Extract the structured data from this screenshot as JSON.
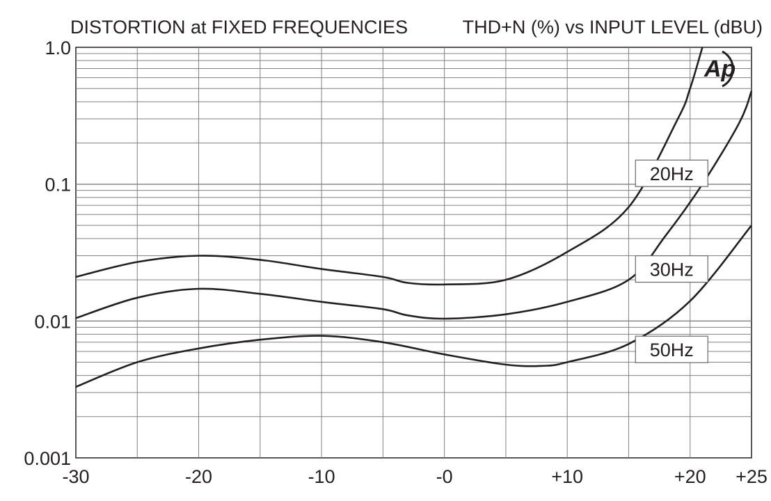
{
  "header": {
    "title": "DISTORTION at FIXED FREQUENCIES",
    "subtitle": "THD+N (%) vs INPUT LEVEL (dBU)"
  },
  "logo": {
    "text": "Ap"
  },
  "chart_data": {
    "type": "line",
    "title": "DISTORTION at FIXED FREQUENCIES",
    "subtitle": "THD+N (%) vs INPUT LEVEL (dBU)",
    "xlabel": "",
    "ylabel": "",
    "xlim": [
      -30,
      25
    ],
    "ylim": [
      0.001,
      1.0
    ],
    "yscale": "log",
    "grid": true,
    "x_ticks": [
      {
        "value": -30,
        "label": "-30"
      },
      {
        "value": -20,
        "label": "-20"
      },
      {
        "value": -10,
        "label": "-10"
      },
      {
        "value": 0,
        "label": "-0"
      },
      {
        "value": 10,
        "label": "+10"
      },
      {
        "value": 20,
        "label": "+20"
      },
      {
        "value": 25,
        "label": "+25"
      }
    ],
    "y_ticks": [
      {
        "value": 1.0,
        "label": "1.0"
      },
      {
        "value": 0.1,
        "label": "0.1"
      },
      {
        "value": 0.01,
        "label": "0.01"
      },
      {
        "value": 0.001,
        "label": "0.001"
      }
    ],
    "series": [
      {
        "name": "20Hz",
        "x": [
          -30,
          -25,
          -20,
          -15,
          -10,
          -5,
          -3,
          0,
          5,
          10,
          15,
          19,
          20,
          21
        ],
        "y": [
          0.021,
          0.027,
          0.03,
          0.028,
          0.024,
          0.021,
          0.019,
          0.0185,
          0.02,
          0.032,
          0.068,
          0.3,
          0.5,
          1.0
        ]
      },
      {
        "name": "30Hz",
        "x": [
          -30,
          -25,
          -20,
          -15,
          -10,
          -5,
          -3,
          0,
          5,
          10,
          15,
          18,
          21,
          24,
          25
        ],
        "y": [
          0.0105,
          0.0148,
          0.0172,
          0.0158,
          0.0138,
          0.0122,
          0.011,
          0.0104,
          0.0112,
          0.0138,
          0.02,
          0.042,
          0.1,
          0.28,
          0.48
        ]
      },
      {
        "name": "50Hz",
        "x": [
          -30,
          -25,
          -20,
          -15,
          -10,
          -5,
          0,
          5,
          8,
          10,
          15,
          20,
          25
        ],
        "y": [
          0.0033,
          0.005,
          0.0063,
          0.0073,
          0.0078,
          0.007,
          0.0057,
          0.0048,
          0.0047,
          0.005,
          0.0068,
          0.014,
          0.05
        ]
      }
    ],
    "annotations": [
      {
        "text": "20Hz",
        "x": 18.5,
        "y": 0.12
      },
      {
        "text": "30Hz",
        "x": 18.5,
        "y": 0.024
      },
      {
        "text": "50Hz",
        "x": 18.5,
        "y": 0.0062
      }
    ]
  }
}
